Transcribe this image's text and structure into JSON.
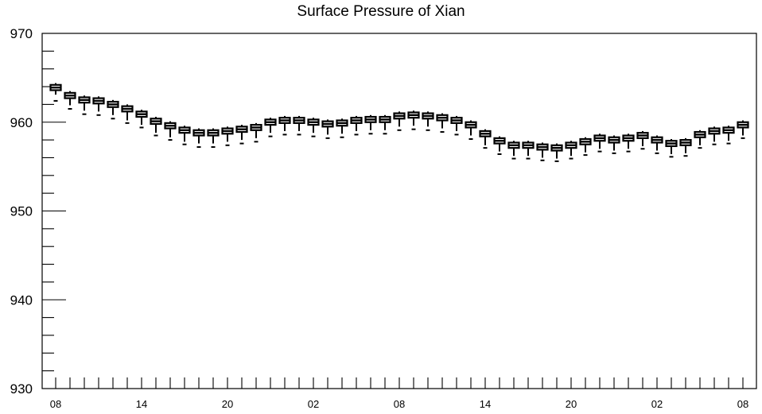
{
  "chart_data": {
    "type": "box",
    "title": "Surface Pressure of Xian",
    "xlabel": "",
    "ylabel": "",
    "ylim": [
      930,
      970
    ],
    "y_ticks": [
      "970",
      "960",
      "950",
      "940",
      "930"
    ],
    "x_tick_labels": [
      "08",
      "14",
      "20",
      "02",
      "08",
      "14",
      "20",
      "02",
      "08"
    ],
    "grid": false,
    "series": [
      {
        "hour_index": [
          0,
          1,
          2,
          3,
          4,
          5,
          6,
          7,
          8,
          9,
          10,
          11,
          12,
          13,
          14,
          15,
          16,
          17,
          18,
          19,
          20,
          21,
          22,
          23,
          24,
          25,
          26,
          27,
          28,
          29,
          30,
          31,
          32,
          33,
          34,
          35,
          36,
          37,
          38,
          39,
          40,
          41,
          42,
          43,
          44,
          45,
          46,
          47,
          48
        ],
        "median": [
          963.9,
          963.0,
          962.5,
          962.4,
          962.0,
          961.5,
          960.9,
          960.1,
          959.6,
          959.1,
          958.8,
          958.8,
          959.0,
          959.2,
          959.4,
          960.0,
          960.2,
          960.2,
          960.0,
          959.8,
          959.9,
          960.2,
          960.3,
          960.3,
          960.7,
          960.8,
          960.7,
          960.5,
          960.2,
          959.7,
          958.7,
          957.9,
          957.4,
          957.4,
          957.2,
          957.1,
          957.4,
          957.8,
          958.2,
          958.0,
          958.2,
          958.5,
          958.0,
          957.6,
          957.7,
          958.6,
          959.0,
          959.1,
          959.7
        ],
        "q1": [
          963.6,
          962.7,
          962.2,
          962.1,
          961.7,
          961.2,
          960.6,
          959.8,
          959.3,
          958.8,
          958.5,
          958.5,
          958.7,
          958.9,
          959.1,
          959.7,
          959.9,
          959.9,
          959.7,
          959.5,
          959.6,
          959.9,
          960.0,
          960.0,
          960.4,
          960.5,
          960.4,
          960.2,
          959.9,
          959.4,
          958.4,
          957.6,
          957.1,
          957.1,
          956.9,
          956.8,
          957.1,
          957.5,
          957.9,
          957.7,
          957.9,
          958.2,
          957.7,
          957.3,
          957.4,
          958.3,
          958.7,
          958.8,
          959.4
        ],
        "q3": [
          964.2,
          963.3,
          962.8,
          962.7,
          962.3,
          961.8,
          961.2,
          960.4,
          959.9,
          959.4,
          959.1,
          959.1,
          959.3,
          959.5,
          959.7,
          960.3,
          960.5,
          960.5,
          960.3,
          960.1,
          960.2,
          960.5,
          960.6,
          960.6,
          961.0,
          961.1,
          961.0,
          960.8,
          960.5,
          960.0,
          959.0,
          958.2,
          957.7,
          957.7,
          957.5,
          957.4,
          957.7,
          958.1,
          958.5,
          958.3,
          958.5,
          958.8,
          958.3,
          957.9,
          958.0,
          958.9,
          959.3,
          959.4,
          960.0
        ],
        "whisker_low": [
          963.1,
          961.9,
          961.3,
          961.2,
          960.8,
          960.2,
          959.7,
          958.8,
          958.3,
          957.8,
          957.6,
          957.6,
          957.8,
          958.0,
          958.2,
          958.8,
          959.0,
          959.0,
          958.8,
          958.6,
          958.7,
          959.0,
          959.1,
          959.1,
          959.5,
          959.6,
          959.5,
          959.3,
          959.0,
          958.5,
          957.4,
          956.7,
          956.2,
          956.2,
          956.0,
          955.9,
          956.2,
          956.6,
          957.0,
          956.8,
          957.0,
          957.3,
          956.8,
          956.4,
          956.5,
          957.4,
          957.8,
          957.9,
          958.5
        ],
        "whisker_high": [
          964.4,
          963.5,
          963.0,
          962.9,
          962.5,
          962.0,
          961.4,
          960.6,
          960.1,
          959.6,
          959.3,
          959.3,
          959.5,
          959.7,
          959.9,
          960.5,
          960.7,
          960.7,
          960.5,
          960.3,
          960.4,
          960.7,
          960.8,
          960.8,
          961.2,
          961.3,
          961.2,
          961.0,
          960.7,
          960.2,
          959.2,
          958.4,
          957.9,
          957.9,
          957.7,
          957.6,
          957.9,
          958.3,
          958.7,
          958.5,
          958.7,
          959.0,
          958.5,
          958.1,
          958.2,
          959.1,
          959.5,
          959.6,
          960.2
        ],
        "outlier": [
          962.4,
          961.5,
          960.9,
          960.8,
          960.4,
          959.9,
          959.4,
          958.5,
          958.0,
          957.5,
          957.2,
          957.2,
          957.4,
          957.6,
          957.8,
          958.4,
          958.6,
          958.6,
          958.4,
          958.2,
          958.3,
          958.6,
          958.7,
          958.7,
          959.1,
          959.2,
          959.1,
          958.9,
          958.6,
          958.1,
          957.1,
          956.4,
          955.9,
          955.9,
          955.7,
          955.6,
          955.9,
          956.3,
          956.7,
          956.5,
          956.7,
          957.0,
          956.5,
          956.1,
          956.2,
          957.1,
          957.5,
          957.6,
          958.2
        ]
      }
    ]
  }
}
